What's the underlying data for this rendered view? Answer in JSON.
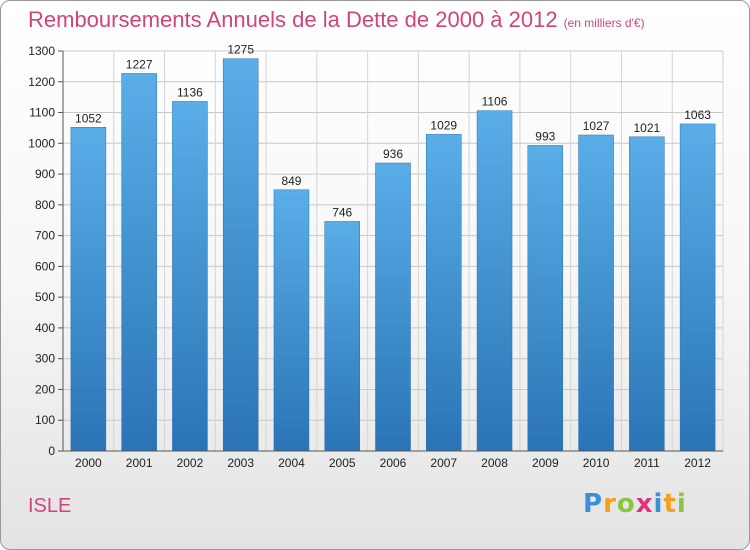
{
  "header": {
    "title": "Remboursements Annuels de la Dette de 2000 à 2012",
    "unit": "(en milliers d'€)"
  },
  "footer": {
    "place": "ISLE"
  },
  "logo": {
    "p": "P",
    "r": "r",
    "o": "o",
    "x": "x",
    "i1": "i",
    "t": "t",
    "i2": "i"
  },
  "colors": {
    "title": "#d0447a",
    "bar_top": "#5aaee8",
    "bar_bottom": "#2a74b5"
  },
  "chart_data": {
    "type": "bar",
    "title": "Remboursements Annuels de la Dette de 2000 à 2012",
    "xlabel": "",
    "ylabel": "",
    "categories": [
      "2000",
      "2001",
      "2002",
      "2003",
      "2004",
      "2005",
      "2006",
      "2007",
      "2008",
      "2009",
      "2010",
      "2011",
      "2012"
    ],
    "values": [
      1052,
      1227,
      1136,
      1275,
      849,
      746,
      936,
      1029,
      1106,
      993,
      1027,
      1021,
      1063
    ],
    "ylim": [
      0,
      1300
    ],
    "yticks": [
      0,
      100,
      200,
      300,
      400,
      500,
      600,
      700,
      800,
      900,
      1000,
      1100,
      1200,
      1300
    ],
    "grid": true,
    "legend": "none"
  }
}
